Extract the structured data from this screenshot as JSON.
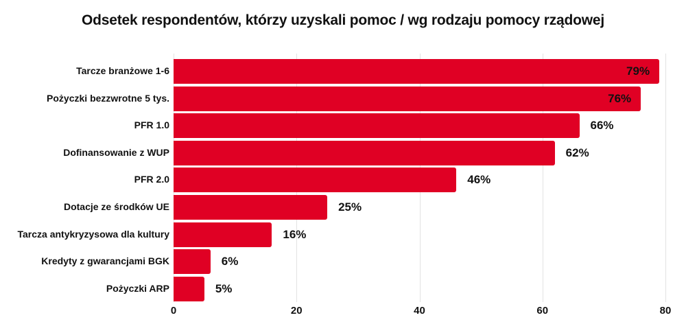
{
  "chart_data": {
    "type": "bar",
    "orientation": "horizontal",
    "title": "Odsetek respondentów, którzy uzyskali pomoc / wg rodzaju pomocy rządowej",
    "xlabel": "",
    "ylabel": "",
    "categories": [
      "Tarcze branżowe 1-6",
      "Pożyczki bezzwrotne 5 tys.",
      "PFR 1.0",
      "Dofinansowanie z WUP",
      "PFR 2.0",
      "Dotacje ze środków UE",
      "Tarcza antykryzysowa dla kultury",
      "Kredyty z gwarancjami BGK",
      "Pożyczki ARP"
    ],
    "values": [
      79,
      76,
      66,
      62,
      46,
      25,
      16,
      6,
      5
    ],
    "value_labels": [
      "79%",
      "76%",
      "66%",
      "62%",
      "46%",
      "25%",
      "16%",
      "6%",
      "5%"
    ],
    "xlim": [
      0,
      80
    ],
    "xticks": [
      "0",
      "20",
      "40",
      "60",
      "80"
    ],
    "grid": "vertical",
    "legend": "none",
    "bar_color": "#e00024"
  }
}
